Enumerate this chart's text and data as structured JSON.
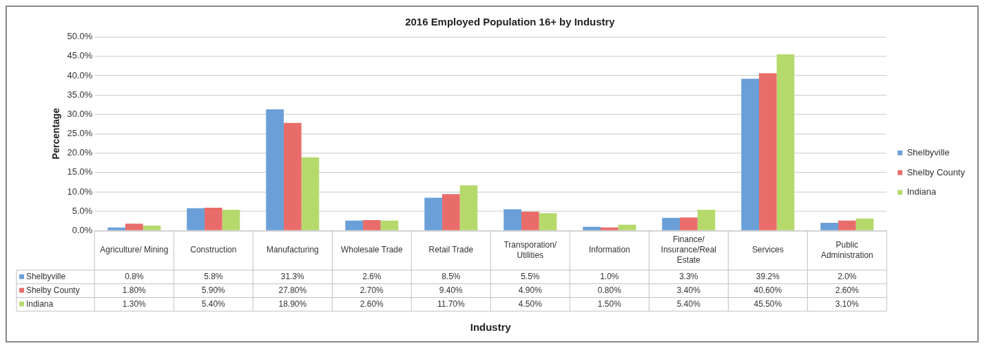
{
  "chart_data": {
    "type": "bar",
    "title": "2016 Employed Population 16+ by Industry",
    "annotations": [
      "Industry"
    ],
    "ylabel": "Percentage",
    "categories": [
      "Agriculture/ Mining",
      "Construction",
      "Manufacturing",
      "Wholesale Trade",
      "Retail Trade",
      "Transporation/ Utilities",
      "Information",
      "Finance/ Insurance/Real Estate",
      "Services",
      "Public Administration"
    ],
    "series": [
      {
        "name": "Shelbyville",
        "color": "#6a9fd8",
        "values": [
          0.8,
          5.8,
          31.3,
          2.6,
          8.5,
          5.5,
          1.0,
          3.3,
          39.2,
          2.0
        ],
        "value_labels": [
          "0.8%",
          "5.8%",
          "31.3%",
          "2.6%",
          "8.5%",
          "5.5%",
          "1.0%",
          "3.3%",
          "39.2%",
          "2.0%"
        ]
      },
      {
        "name": "Shelby County",
        "color": "#e86d6a",
        "values": [
          1.8,
          5.9,
          27.8,
          2.7,
          9.4,
          4.9,
          0.8,
          3.4,
          40.6,
          2.6
        ],
        "value_labels": [
          "1.80%",
          "5.90%",
          "27.80%",
          "2.70%",
          "9.40%",
          "4.90%",
          "0.80%",
          "3.40%",
          "40.60%",
          "2.60%"
        ]
      },
      {
        "name": "Indiana",
        "color": "#b6d96c",
        "values": [
          1.3,
          5.4,
          18.9,
          2.6,
          11.7,
          4.5,
          1.5,
          5.4,
          45.5,
          3.1
        ],
        "value_labels": [
          "1.30%",
          "5.40%",
          "18.90%",
          "2.60%",
          "11.70%",
          "4.50%",
          "1.50%",
          "5.40%",
          "45.50%",
          "3.10%"
        ]
      }
    ],
    "ylim": [
      0,
      50
    ],
    "yticks": [
      {
        "value": 0,
        "label": "0.0%"
      },
      {
        "value": 5,
        "label": "5.0%"
      },
      {
        "value": 10,
        "label": "10.0%"
      },
      {
        "value": 15,
        "label": "15.0%"
      },
      {
        "value": 20,
        "label": "20.0%"
      },
      {
        "value": 25,
        "label": "25.0%"
      },
      {
        "value": 30,
        "label": "30.0%"
      },
      {
        "value": 35,
        "label": "35.0%"
      },
      {
        "value": 40,
        "label": "40.0%"
      },
      {
        "value": 45,
        "label": "45.0%"
      },
      {
        "value": 50,
        "label": "50.0%"
      }
    ],
    "grid": "y",
    "legend": "right"
  }
}
